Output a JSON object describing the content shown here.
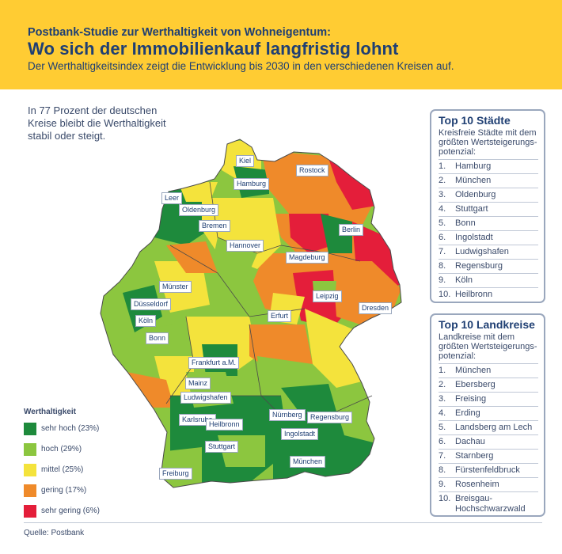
{
  "header": {
    "kicker": "Postbank-Studie zur Werthaltigkeit von Wohneigentum:",
    "title": "Wo sich der Immobilienkauf langfristig lohnt",
    "subtitle": "Der Werthaltigkeitsindex zeigt die Entwicklung bis 2030 in den verschiedenen Kreisen auf."
  },
  "intro": "In 77 Prozent der deutschen Kreise bleibt die Werthaltigkeit stabil oder steigt.",
  "colors": {
    "sehr_hoch": "#1e8a3c",
    "hoch": "#8cc63f",
    "mittel": "#f4e33c",
    "gering": "#ef8a2a",
    "sehr_gering": "#e41e3a",
    "brand": "#ffcc33",
    "text": "#1f3f73"
  },
  "legend": {
    "title": "Werthaltigkeit",
    "items": [
      {
        "label": "sehr hoch (23%)",
        "color": "#1e8a3c"
      },
      {
        "label": "hoch (29%)",
        "color": "#8cc63f"
      },
      {
        "label": "mittel (25%)",
        "color": "#f4e33c"
      },
      {
        "label": "gering (17%)",
        "color": "#ef8a2a"
      },
      {
        "label": "sehr gering (6%)",
        "color": "#e41e3a"
      }
    ]
  },
  "cities": {
    "kiel": "Kiel",
    "hamburg": "Hamburg",
    "rostock": "Rostock",
    "leer": "Leer",
    "oldenburg": "Oldenburg",
    "bremen": "Bremen",
    "berlin": "Berlin",
    "hannover": "Hannover",
    "magdeburg": "Magdeburg",
    "muenster": "Münster",
    "duesseldorf": "Düsseldorf",
    "leipzig": "Leipzig",
    "dresden": "Dresden",
    "koeln": "Köln",
    "erfurt": "Erfurt",
    "bonn": "Bonn",
    "frankfurt": "Frankfurt a.M.",
    "mainz": "Mainz",
    "ludwigshafen": "Ludwigshafen",
    "nuernberg": "Nürnberg",
    "regensburg": "Regensburg",
    "karlsruhe": "Karlsruhe",
    "heilbronn": "Heilbronn",
    "ingolstadt": "Ingolstadt",
    "stuttgart": "Stuttgart",
    "muenchen": "München",
    "freiburg": "Freiburg"
  },
  "top_cities": {
    "title": "Top 10 Städte",
    "subtitle": "Kreisfreie Städte mit dem größten Wertsteigerungs-potenzial:",
    "items": [
      {
        "n": "1.",
        "name": "Hamburg"
      },
      {
        "n": "2.",
        "name": "München"
      },
      {
        "n": "3.",
        "name": "Oldenburg"
      },
      {
        "n": "4.",
        "name": "Stuttgart"
      },
      {
        "n": "5.",
        "name": "Bonn"
      },
      {
        "n": "6.",
        "name": "Ingolstadt"
      },
      {
        "n": "7.",
        "name": "Ludwigshafen"
      },
      {
        "n": "8.",
        "name": "Regensburg"
      },
      {
        "n": "9.",
        "name": "Köln"
      },
      {
        "n": "10.",
        "name": "Heilbronn"
      }
    ]
  },
  "top_landkreise": {
    "title": "Top 10 Landkreise",
    "subtitle": "Landkreise mit dem größten Wertsteigerungs-potenzial:",
    "items": [
      {
        "n": "1.",
        "name": "München"
      },
      {
        "n": "2.",
        "name": "Ebersberg"
      },
      {
        "n": "3.",
        "name": "Freising"
      },
      {
        "n": "4.",
        "name": "Erding"
      },
      {
        "n": "5.",
        "name": "Landsberg am Lech"
      },
      {
        "n": "6.",
        "name": "Dachau"
      },
      {
        "n": "7.",
        "name": "Starnberg"
      },
      {
        "n": "8.",
        "name": "Fürstenfeldbruck"
      },
      {
        "n": "9.",
        "name": "Rosenheim"
      },
      {
        "n": "10.",
        "name": "Breisgau-Hochschwarzwald"
      }
    ]
  },
  "source": "Quelle: Postbank"
}
